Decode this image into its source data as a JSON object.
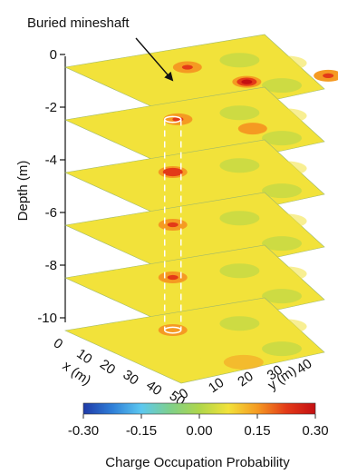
{
  "annotation": "Buried mineshaft",
  "depth_axis": {
    "label": "Depth (m)",
    "ticks": [
      "0",
      "-2",
      "-4",
      "-6",
      "-8",
      "-10"
    ]
  },
  "x_axis": {
    "label": "x (m)",
    "ticks": [
      "0",
      "10",
      "20",
      "30",
      "40",
      "50"
    ]
  },
  "y_axis": {
    "label": "y (m)",
    "ticks": [
      "0",
      "10",
      "20",
      "30",
      "40"
    ]
  },
  "colorbar": {
    "label": "Charge Occupation Probability",
    "ticks": [
      "-0.30",
      "-0.15",
      "0.00",
      "0.15",
      "0.30"
    ],
    "range": [
      -0.3,
      0.3
    ],
    "colors": [
      "#1f3aa8",
      "#2f7fd8",
      "#5cc8f0",
      "#7fd08a",
      "#aed64a",
      "#f2e23a",
      "#f59a22",
      "#e33a18",
      "#c40f12"
    ]
  },
  "slices": [
    {
      "depth": 0,
      "anomalies": [
        {
          "u": 0.28,
          "v": 0.45,
          "strength": 0.22
        },
        {
          "u": 0.62,
          "v": 0.55,
          "strength": 0.3
        },
        {
          "u": 0.72,
          "v": 0.9,
          "strength": 0.2
        }
      ]
    },
    {
      "depth": -2,
      "anomalies": [
        {
          "u": 0.25,
          "v": 0.42,
          "strength": 0.22
        },
        {
          "u": 0.55,
          "v": 0.62,
          "strength": 0.18
        }
      ]
    },
    {
      "depth": -4,
      "anomalies": [
        {
          "u": 0.24,
          "v": 0.4,
          "strength": 0.26
        }
      ]
    },
    {
      "depth": -6,
      "anomalies": [
        {
          "u": 0.24,
          "v": 0.4,
          "strength": 0.24
        }
      ]
    },
    {
      "depth": -8,
      "anomalies": [
        {
          "u": 0.24,
          "v": 0.4,
          "strength": 0.22
        }
      ]
    },
    {
      "depth": -10,
      "anomalies": [
        {
          "u": 0.24,
          "v": 0.4,
          "strength": 0.18
        }
      ]
    }
  ]
}
